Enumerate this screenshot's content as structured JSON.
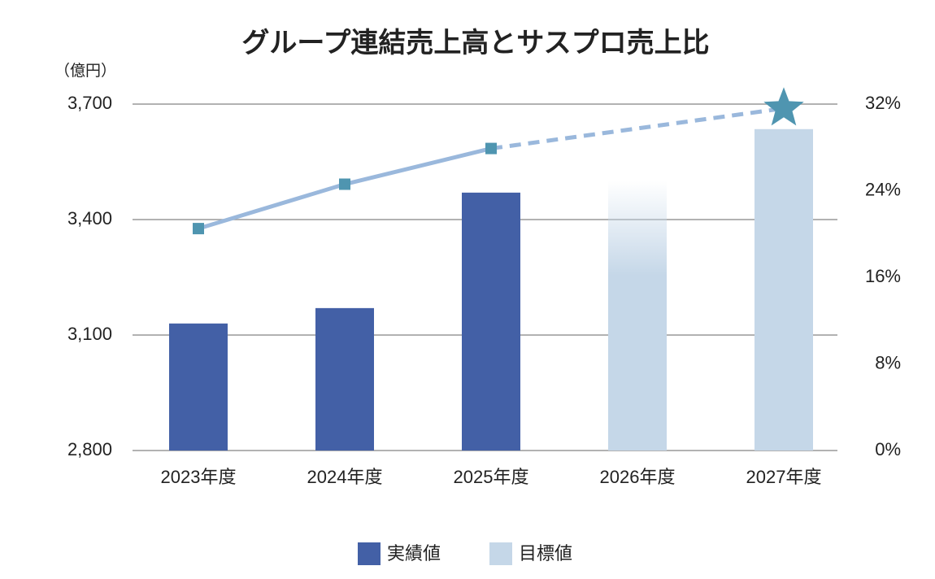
{
  "chart_data": {
    "type": "bar",
    "title": "グループ連結売上高とサスプロ売上比",
    "y_label": "（億円）",
    "categories": [
      "2023年度",
      "2024年度",
      "2025年度",
      "2026年度",
      "2027年度"
    ],
    "series": [
      {
        "name": "実績値",
        "color": "#4360a6",
        "values": [
          3130,
          3170,
          3470,
          null,
          null
        ]
      },
      {
        "name": "目標値",
        "color": "#c5d7e8",
        "values": [
          null,
          null,
          null,
          3500,
          3635
        ]
      }
    ],
    "fade_top": [
      false,
      false,
      false,
      true,
      false
    ],
    "line": {
      "axis": "y2",
      "color": "#9ab8dc",
      "marker_color": "#4f95b0",
      "values": [
        20.5,
        24.6,
        27.9,
        null,
        31.6
      ],
      "segment_styles": [
        "solid",
        "solid",
        "dashed"
      ],
      "markers": [
        "square",
        "square",
        "square",
        null,
        "star"
      ]
    },
    "ylim": [
      2800,
      3700
    ],
    "yticks": [
      {
        "value": 2800,
        "label": "2,800"
      },
      {
        "value": 3100,
        "label": "3,100"
      },
      {
        "value": 3400,
        "label": "3,400"
      },
      {
        "value": 3700,
        "label": "3,700"
      }
    ],
    "y2lim": [
      0,
      32
    ],
    "y2ticks": [
      {
        "value": 0,
        "label": "0%"
      },
      {
        "value": 8,
        "label": "8%"
      },
      {
        "value": 16,
        "label": "16%"
      },
      {
        "value": 24,
        "label": "24%"
      },
      {
        "value": 32,
        "label": "32%"
      }
    ],
    "grid": true,
    "legend": "bottom"
  }
}
